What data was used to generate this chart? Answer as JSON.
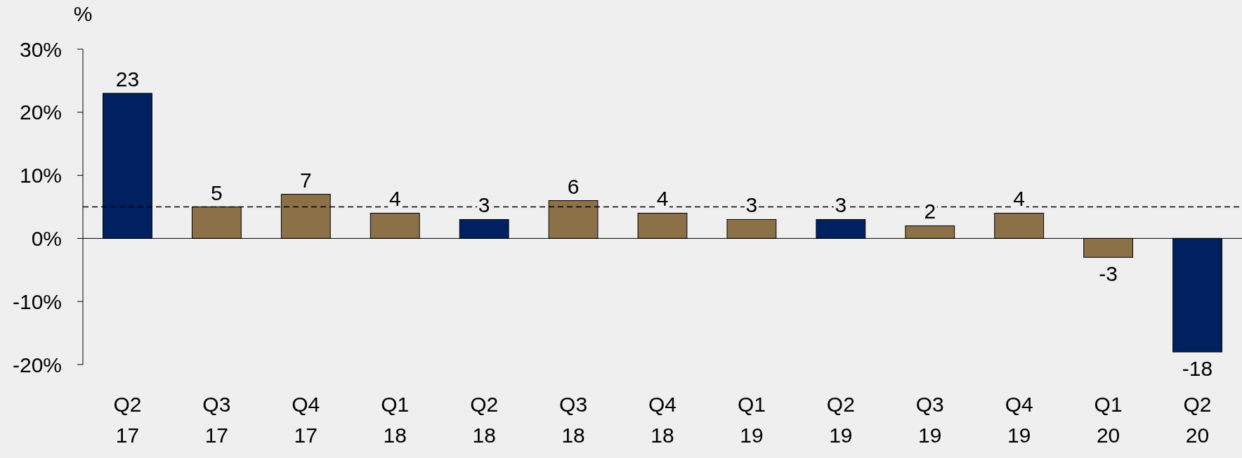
{
  "chart_data": {
    "type": "bar",
    "ylabel": "%",
    "categories": [
      "Q2\n17",
      "Q3\n17",
      "Q4\n17",
      "Q1\n18",
      "Q2\n18",
      "Q3\n18",
      "Q4\n18",
      "Q1\n19",
      "Q2\n19",
      "Q3\n19",
      "Q4\n19",
      "Q1\n20",
      "Q2\n20"
    ],
    "values": [
      23,
      5,
      7,
      4,
      3,
      6,
      4,
      3,
      3,
      2,
      4,
      -3,
      -18
    ],
    "colors": [
      "#002060",
      "#8b7048",
      "#8b7048",
      "#8b7048",
      "#002060",
      "#8b7048",
      "#8b7048",
      "#8b7048",
      "#002060",
      "#8b7048",
      "#8b7048",
      "#8b7048",
      "#002060"
    ],
    "ylim": [
      -20,
      30
    ],
    "yticks": [
      {
        "value": -20,
        "label": "-20%"
      },
      {
        "value": -10,
        "label": "-10%"
      },
      {
        "value": 0,
        "label": "0%"
      },
      {
        "value": 10,
        "label": "10%"
      },
      {
        "value": 20,
        "label": "20%"
      },
      {
        "value": 30,
        "label": "30%"
      }
    ],
    "data_labels": true,
    "ref_lines": [
      {
        "axis": "y",
        "value": 5,
        "line_style": "dashed",
        "color": "#000000"
      }
    ]
  }
}
